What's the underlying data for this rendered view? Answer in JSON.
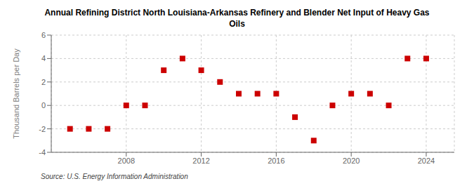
{
  "chart_data": {
    "type": "scatter",
    "title": "Annual Refining District North Louisiana-Arkansas Refinery and Blender Net Input of Heavy Gas\nOils",
    "y_label": "Thousand Barrels per Day",
    "annotations": [
      "Source: U.S. Energy Information Administration"
    ],
    "x": [
      2005,
      2006,
      2007,
      2008,
      2009,
      2010,
      2011,
      2012,
      2013,
      2014,
      2015,
      2016,
      2017,
      2018,
      2019,
      2020,
      2021,
      2022,
      2023,
      2024
    ],
    "values": [
      -2,
      -2,
      -2,
      0,
      0,
      3,
      4,
      3,
      2,
      1,
      1,
      1,
      -1,
      -3,
      0,
      1,
      1,
      0,
      4,
      4
    ],
    "color": "#cc0000",
    "marker": "square",
    "xlim": [
      2004.0,
      2025.5
    ],
    "xticks": [
      2008,
      2012,
      2016,
      2020,
      2024
    ],
    "ylim": [
      -4,
      6
    ],
    "yticks": [
      -4,
      -2,
      0,
      2,
      4,
      6
    ],
    "grid": true
  }
}
